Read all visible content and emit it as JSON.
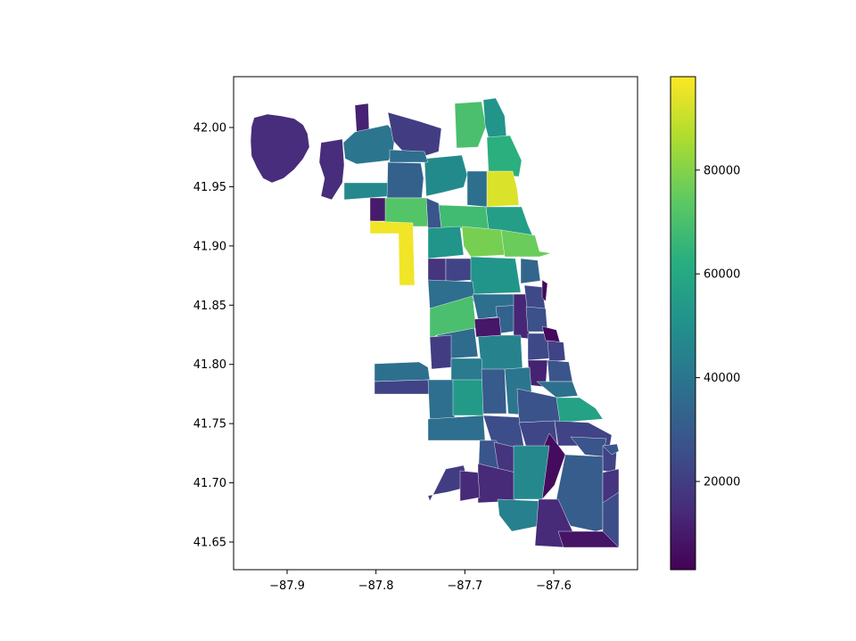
{
  "chart_data": {
    "type": "choropleth",
    "colormap": "viridis",
    "x_axis": {
      "ticks": [
        -87.9,
        -87.8,
        -87.7,
        -87.6
      ],
      "tick_labels": [
        "−87.9",
        "−87.8",
        "−87.7",
        "−87.6"
      ]
    },
    "y_axis": {
      "ticks": [
        42.0,
        41.95,
        41.9,
        41.85,
        41.8,
        41.75,
        41.7,
        41.65
      ],
      "tick_labels": [
        "42.00",
        "41.95",
        "41.90",
        "41.85",
        "41.80",
        "41.75",
        "41.70",
        "41.65"
      ]
    },
    "colorbar": {
      "range": [
        3000,
        98000
      ],
      "ticks": [
        20000,
        40000,
        60000,
        80000
      ],
      "tick_labels": [
        "20000",
        "40000",
        "60000",
        "80000"
      ],
      "location": "right"
    },
    "regions": [
      {
        "value": 15000
      },
      {
        "value": 12000
      },
      {
        "value": 40000
      },
      {
        "value": 20000
      },
      {
        "value": 15000
      },
      {
        "value": 70000
      },
      {
        "value": 52000
      },
      {
        "value": 47000
      },
      {
        "value": 32000
      },
      {
        "value": 48000
      },
      {
        "value": 37000
      },
      {
        "value": 63000
      },
      {
        "value": 93000
      },
      {
        "value": 38000
      },
      {
        "value": 72000
      },
      {
        "value": 10000
      },
      {
        "value": 96000
      },
      {
        "value": 28000
      },
      {
        "value": 68000
      },
      {
        "value": 56000
      },
      {
        "value": 52000
      },
      {
        "value": 78000
      },
      {
        "value": 76000
      },
      {
        "value": 17000
      },
      {
        "value": 22000
      },
      {
        "value": 52000
      },
      {
        "value": 34000
      },
      {
        "value": 37000
      },
      {
        "value": 70000
      },
      {
        "value": 37000
      },
      {
        "value": 33000
      },
      {
        "value": 13000
      },
      {
        "value": 24000
      },
      {
        "value": 36000
      },
      {
        "value": 45000
      },
      {
        "value": 20000
      },
      {
        "value": 9000
      },
      {
        "value": 38000
      },
      {
        "value": 42000
      },
      {
        "value": 22000
      },
      {
        "value": 26000
      },
      {
        "value": 24000
      },
      {
        "value": 5000
      },
      {
        "value": 22000
      },
      {
        "value": 12000
      },
      {
        "value": 28000
      },
      {
        "value": 37000
      },
      {
        "value": 54000
      },
      {
        "value": 30000
      },
      {
        "value": 40000
      },
      {
        "value": 38000
      },
      {
        "value": 27000
      },
      {
        "value": 57000
      },
      {
        "value": 37000
      },
      {
        "value": 25000
      },
      {
        "value": 23000
      },
      {
        "value": 22000
      },
      {
        "value": 28000
      },
      {
        "value": 22000
      },
      {
        "value": 6000
      },
      {
        "value": 28000
      },
      {
        "value": 17000
      },
      {
        "value": 14000
      },
      {
        "value": 20000
      },
      {
        "value": 14000
      },
      {
        "value": 47000
      },
      {
        "value": 44000
      },
      {
        "value": 31000
      },
      {
        "value": 17000
      },
      {
        "value": 25000
      },
      {
        "value": 14000
      },
      {
        "value": 8000
      },
      {
        "value": 28000
      },
      {
        "value": 5000
      }
    ]
  }
}
